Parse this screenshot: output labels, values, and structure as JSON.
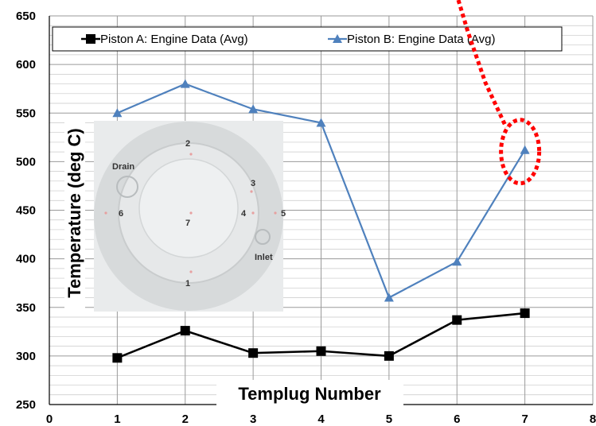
{
  "chart_data": {
    "type": "line",
    "title": "",
    "xlabel": "Templug Number",
    "ylabel": "Temperature (deg C)",
    "xlim": [
      0,
      8
    ],
    "ylim": [
      250,
      650
    ],
    "x_ticks": [
      0,
      1,
      2,
      3,
      4,
      5,
      6,
      7,
      8
    ],
    "y_ticks": [
      250,
      300,
      350,
      400,
      450,
      500,
      550,
      600,
      650
    ],
    "grid": true,
    "legend_position": "top",
    "x": [
      1,
      2,
      3,
      4,
      5,
      6,
      7
    ],
    "series": [
      {
        "name": "Piston A:  Engine Data (Avg)",
        "values": [
          298,
          326,
          303,
          305,
          300,
          337,
          344
        ],
        "color": "#000000",
        "marker": "square"
      },
      {
        "name": "Piston B:  Engine Data (Avg)",
        "values": [
          550,
          580,
          554,
          540,
          360,
          397,
          512
        ],
        "color": "#4f81bd",
        "marker": "triangle"
      }
    ],
    "annotations": {
      "highlight_color": "#ff0000",
      "highlight_point": {
        "x": 7,
        "y": 512
      },
      "inset_image": {
        "description_labels": [
          "Drain",
          "Inlet",
          "1",
          "2",
          "3",
          "4",
          "5",
          "6",
          "7"
        ]
      }
    }
  }
}
